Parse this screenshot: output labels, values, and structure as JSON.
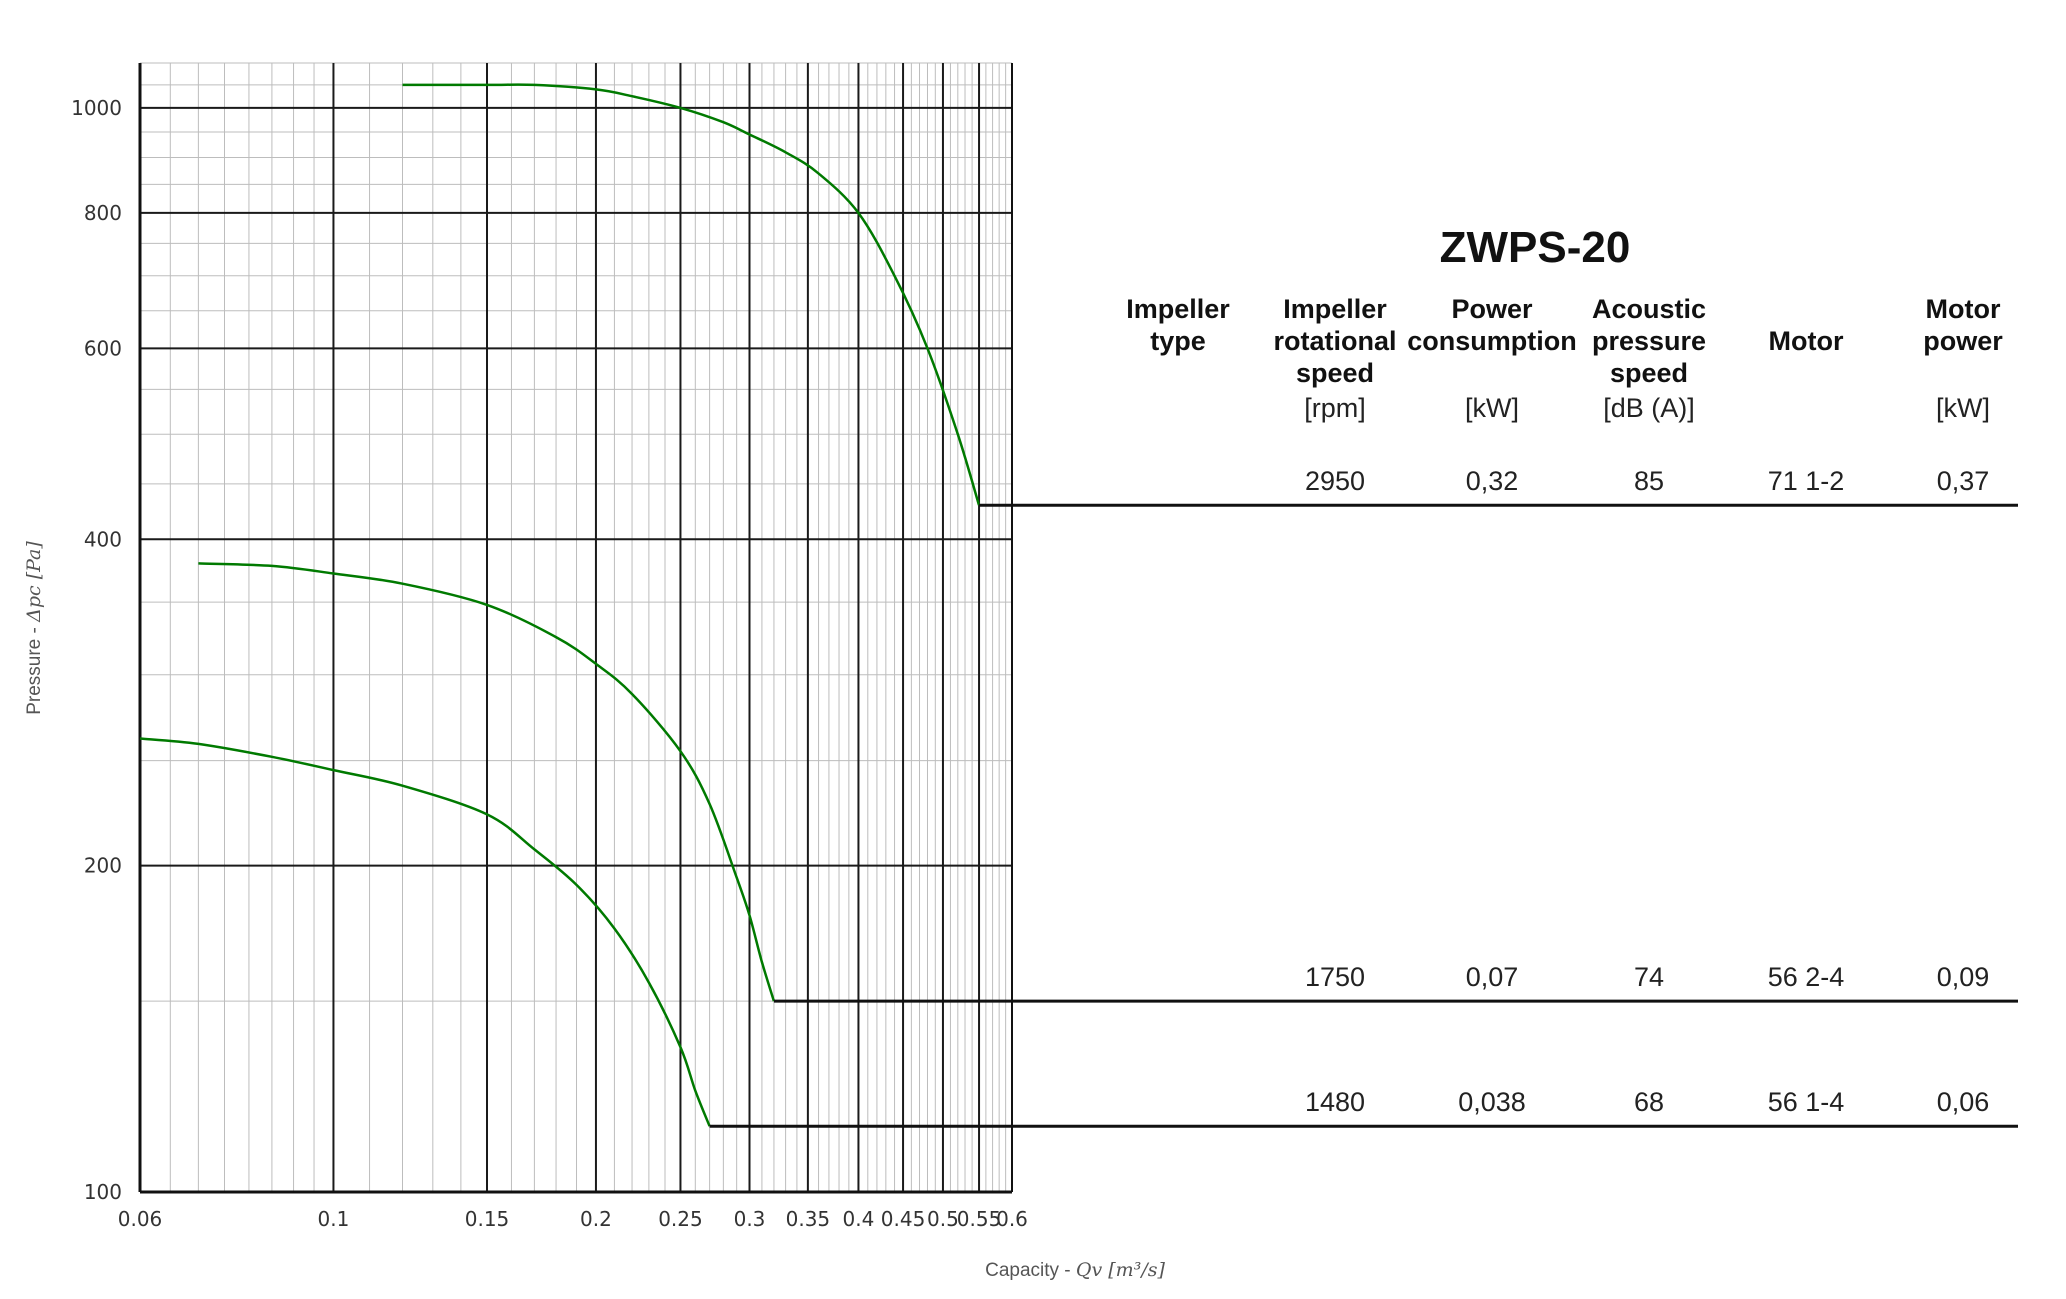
{
  "chart_data": {
    "type": "line",
    "title": "ZWPS-20",
    "xlabel_prefix": "Capacity - ",
    "xlabel_math": "Qv [m³/s]",
    "ylabel_prefix": "Pressure - ",
    "ylabel_math": "Δpc [Pa]",
    "x_scale": "log",
    "y_scale": "log",
    "xlim": [
      0.06,
      0.6
    ],
    "ylim": [
      100,
      1100
    ],
    "x_ticks": [
      0.06,
      0.1,
      0.15,
      0.2,
      0.25,
      0.3,
      0.35,
      0.4,
      0.45,
      0.5,
      0.55,
      0.6
    ],
    "x_tick_labels": [
      "0.06",
      "0.1",
      "0.15",
      "0.2",
      "0.25",
      "0.3",
      "0.35",
      "0.4",
      "0.45",
      "0.5",
      "0.55",
      "0.6"
    ],
    "y_ticks": [
      100,
      200,
      400,
      600,
      800,
      1000
    ],
    "y_tick_labels": [
      "100",
      "200",
      "400",
      "600",
      "800",
      "1000"
    ],
    "grid": true,
    "curve_color": "#007a00",
    "series": [
      {
        "x": [
          0.12,
          0.15,
          0.17,
          0.2,
          0.22,
          0.25,
          0.28,
          0.3,
          0.33,
          0.36,
          0.4,
          0.44,
          0.48,
          0.52,
          0.55
        ],
        "y": [
          1050,
          1050,
          1050,
          1040,
          1025,
          1000,
          970,
          945,
          910,
          870,
          800,
          700,
          600,
          500,
          430
        ]
      },
      {
        "x": [
          0.07,
          0.085,
          0.1,
          0.12,
          0.15,
          0.18,
          0.2,
          0.22,
          0.25,
          0.27,
          0.29,
          0.3,
          0.31,
          0.32
        ],
        "y": [
          380,
          378,
          372,
          364,
          348,
          325,
          307,
          288,
          255,
          228,
          195,
          180,
          163,
          150
        ]
      },
      {
        "x": [
          0.06,
          0.07,
          0.085,
          0.1,
          0.12,
          0.15,
          0.17,
          0.19,
          0.21,
          0.23,
          0.25,
          0.26,
          0.27
        ],
        "y": [
          262,
          259,
          252,
          245,
          237,
          223,
          207,
          192,
          175,
          156,
          136,
          124,
          115
        ]
      }
    ]
  },
  "table": {
    "headers": [
      {
        "lines": [
          "Impeller",
          "type"
        ],
        "unit": ""
      },
      {
        "lines": [
          "Impeller",
          "rotational",
          "speed"
        ],
        "unit": "[rpm]"
      },
      {
        "lines": [
          "Power",
          "consumption"
        ],
        "unit": "[kW]"
      },
      {
        "lines": [
          "Acoustic",
          "pressure",
          "speed"
        ],
        "unit": "[dB (A)]"
      },
      {
        "lines": [
          "Motor"
        ],
        "unit": ""
      },
      {
        "lines": [
          "Motor",
          "power"
        ],
        "unit": "[kW]"
      }
    ],
    "rows": [
      {
        "impeller_type": "",
        "rpm": "2950",
        "power": "0,32",
        "acoustic": "85",
        "motor": "71 1-2",
        "motor_power": "0,37"
      },
      {
        "impeller_type": "",
        "rpm": "1750",
        "power": "0,07",
        "acoustic": "74",
        "motor": "56 2-4",
        "motor_power": "0,09"
      },
      {
        "impeller_type": "",
        "rpm": "1480",
        "power": "0,038",
        "acoustic": "68",
        "motor": "56 1-4",
        "motor_power": "0,06"
      }
    ]
  }
}
